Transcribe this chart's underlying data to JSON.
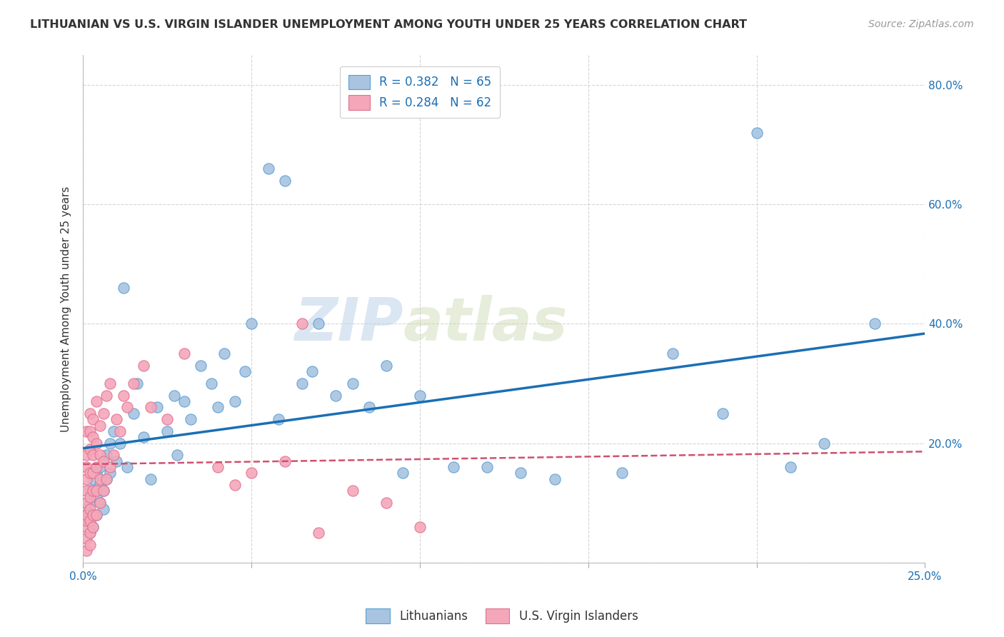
{
  "title": "LITHUANIAN VS U.S. VIRGIN ISLANDER UNEMPLOYMENT AMONG YOUTH UNDER 25 YEARS CORRELATION CHART",
  "source": "Source: ZipAtlas.com",
  "ylabel": "Unemployment Among Youth under 25 years",
  "xlim": [
    0.0,
    0.25
  ],
  "ylim": [
    0.0,
    0.85
  ],
  "xticks": [
    0.0,
    0.05,
    0.1,
    0.15,
    0.2,
    0.25
  ],
  "yticks": [
    0.0,
    0.2,
    0.4,
    0.6,
    0.8
  ],
  "xticklabels": [
    "0.0%",
    "",
    "",
    "",
    "",
    "25.0%"
  ],
  "yticklabels": [
    "",
    "20.0%",
    "40.0%",
    "60.0%",
    "80.0%"
  ],
  "blue_R": 0.382,
  "blue_N": 65,
  "pink_R": 0.284,
  "pink_N": 62,
  "blue_color": "#a8c4e0",
  "blue_edge_color": "#5a9fd4",
  "blue_line_color": "#1a6fb5",
  "pink_color": "#f4a7b9",
  "pink_edge_color": "#e07090",
  "pink_line_color": "#d05070",
  "watermark_zip": "ZIP",
  "watermark_atlas": "atlas",
  "legend_label_blue": "Lithuanians",
  "legend_label_pink": "U.S. Virgin Islanders",
  "blue_x": [
    0.001,
    0.001,
    0.002,
    0.002,
    0.002,
    0.003,
    0.003,
    0.003,
    0.004,
    0.004,
    0.004,
    0.005,
    0.005,
    0.005,
    0.006,
    0.006,
    0.007,
    0.007,
    0.008,
    0.008,
    0.009,
    0.01,
    0.011,
    0.012,
    0.013,
    0.015,
    0.016,
    0.018,
    0.02,
    0.022,
    0.025,
    0.027,
    0.028,
    0.03,
    0.032,
    0.035,
    0.038,
    0.04,
    0.042,
    0.045,
    0.048,
    0.05,
    0.055,
    0.058,
    0.06,
    0.065,
    0.068,
    0.07,
    0.075,
    0.08,
    0.085,
    0.09,
    0.095,
    0.1,
    0.11,
    0.12,
    0.13,
    0.14,
    0.16,
    0.175,
    0.19,
    0.2,
    0.21,
    0.22,
    0.235
  ],
  "blue_y": [
    0.07,
    0.09,
    0.05,
    0.1,
    0.12,
    0.06,
    0.08,
    0.14,
    0.11,
    0.15,
    0.08,
    0.13,
    0.1,
    0.16,
    0.09,
    0.12,
    0.18,
    0.14,
    0.2,
    0.15,
    0.22,
    0.17,
    0.2,
    0.46,
    0.16,
    0.25,
    0.3,
    0.21,
    0.14,
    0.26,
    0.22,
    0.28,
    0.18,
    0.27,
    0.24,
    0.33,
    0.3,
    0.26,
    0.35,
    0.27,
    0.32,
    0.4,
    0.66,
    0.24,
    0.64,
    0.3,
    0.32,
    0.4,
    0.28,
    0.3,
    0.26,
    0.33,
    0.15,
    0.28,
    0.16,
    0.16,
    0.15,
    0.14,
    0.15,
    0.35,
    0.25,
    0.72,
    0.16,
    0.2,
    0.4
  ],
  "pink_x": [
    0.001,
    0.001,
    0.001,
    0.001,
    0.001,
    0.001,
    0.001,
    0.001,
    0.001,
    0.001,
    0.001,
    0.002,
    0.002,
    0.002,
    0.002,
    0.002,
    0.002,
    0.002,
    0.002,
    0.002,
    0.003,
    0.003,
    0.003,
    0.003,
    0.003,
    0.003,
    0.003,
    0.004,
    0.004,
    0.004,
    0.004,
    0.004,
    0.005,
    0.005,
    0.005,
    0.005,
    0.006,
    0.006,
    0.006,
    0.007,
    0.007,
    0.008,
    0.008,
    0.009,
    0.01,
    0.011,
    0.012,
    0.013,
    0.015,
    0.018,
    0.02,
    0.025,
    0.03,
    0.04,
    0.045,
    0.05,
    0.06,
    0.065,
    0.07,
    0.08,
    0.09,
    0.1
  ],
  "pink_y": [
    0.02,
    0.04,
    0.06,
    0.07,
    0.08,
    0.1,
    0.12,
    0.14,
    0.16,
    0.18,
    0.22,
    0.03,
    0.05,
    0.07,
    0.09,
    0.11,
    0.15,
    0.19,
    0.22,
    0.25,
    0.06,
    0.08,
    0.12,
    0.15,
    0.18,
    0.21,
    0.24,
    0.08,
    0.12,
    0.16,
    0.2,
    0.27,
    0.1,
    0.14,
    0.18,
    0.23,
    0.12,
    0.17,
    0.25,
    0.14,
    0.28,
    0.16,
    0.3,
    0.18,
    0.24,
    0.22,
    0.28,
    0.26,
    0.3,
    0.33,
    0.26,
    0.24,
    0.35,
    0.16,
    0.13,
    0.15,
    0.17,
    0.4,
    0.05,
    0.12,
    0.1,
    0.06
  ]
}
